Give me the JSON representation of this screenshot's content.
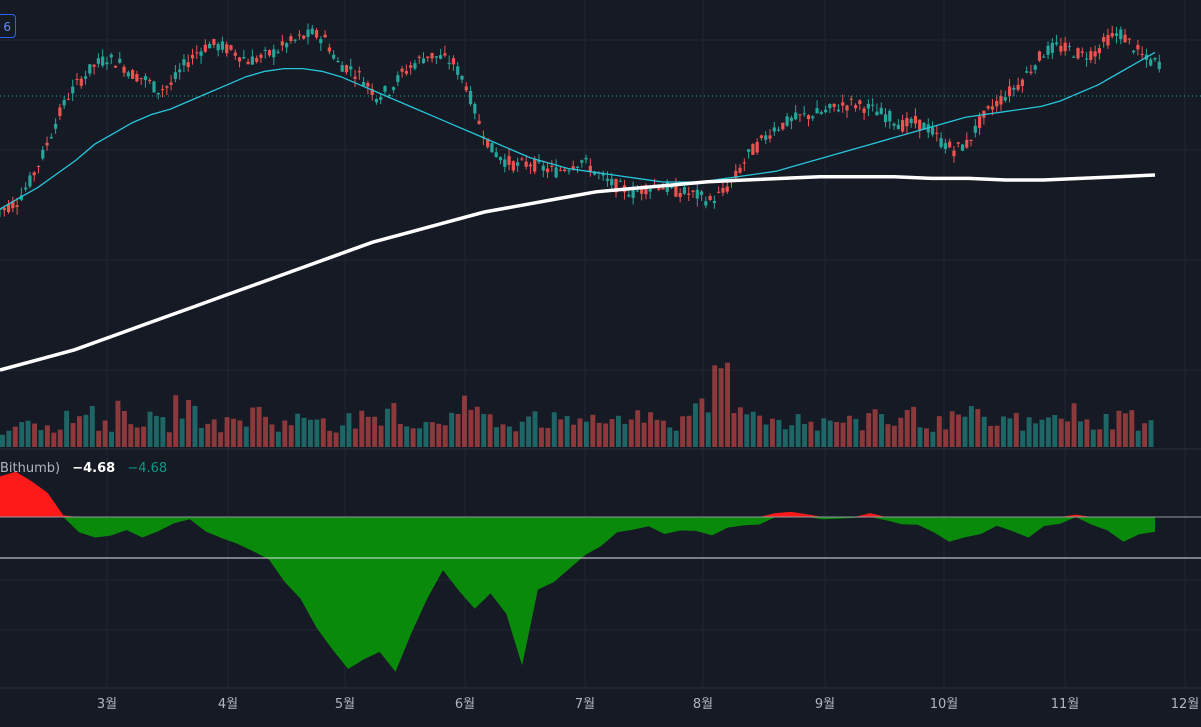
{
  "chart_data": {
    "type": "candlestick",
    "x_ticks": [
      "3월",
      "4월",
      "5월",
      "6월",
      "7월",
      "8월",
      "9월",
      "10월",
      "11월",
      "12월"
    ],
    "price_series": [
      0.3,
      0.33,
      0.4,
      0.5,
      0.62,
      0.72,
      0.78,
      0.83,
      0.86,
      0.84,
      0.8,
      0.78,
      0.74,
      0.76,
      0.83,
      0.88,
      0.91,
      0.9,
      0.88,
      0.85,
      0.86,
      0.88,
      0.91,
      0.93,
      0.95,
      0.93,
      0.84,
      0.82,
      0.78,
      0.72,
      0.74,
      0.8,
      0.84,
      0.87,
      0.86,
      0.84,
      0.76,
      0.62,
      0.52,
      0.48,
      0.46,
      0.47,
      0.45,
      0.44,
      0.46,
      0.48,
      0.44,
      0.4,
      0.38,
      0.36,
      0.38,
      0.39,
      0.37,
      0.36,
      0.35,
      0.33,
      0.36,
      0.42,
      0.5,
      0.55,
      0.6,
      0.62,
      0.64,
      0.65,
      0.66,
      0.68,
      0.69,
      0.68,
      0.66,
      0.64,
      0.61,
      0.62,
      0.6,
      0.55,
      0.52,
      0.54,
      0.62,
      0.68,
      0.72,
      0.76,
      0.82,
      0.88,
      0.9,
      0.89,
      0.87,
      0.88,
      0.93,
      0.95,
      0.9,
      0.85,
      0.84
    ],
    "ma_short": [
      0.3,
      0.34,
      0.38,
      0.43,
      0.48,
      0.54,
      0.58,
      0.62,
      0.65,
      0.67,
      0.7,
      0.73,
      0.76,
      0.79,
      0.81,
      0.82,
      0.82,
      0.81,
      0.79,
      0.76,
      0.73,
      0.7,
      0.67,
      0.64,
      0.61,
      0.58,
      0.55,
      0.52,
      0.49,
      0.47,
      0.45,
      0.44,
      0.43,
      0.42,
      0.41,
      0.4,
      0.4,
      0.4,
      0.41,
      0.42,
      0.43,
      0.44,
      0.46,
      0.48,
      0.5,
      0.52,
      0.54,
      0.56,
      0.58,
      0.6,
      0.62,
      0.64,
      0.65,
      0.66,
      0.67,
      0.68,
      0.7,
      0.73,
      0.76,
      0.8,
      0.84,
      0.88
    ],
    "ma_long": [
      0.0,
      0.03,
      0.06,
      0.1,
      0.14,
      0.18,
      0.22,
      0.26,
      0.3,
      0.34,
      0.38,
      0.41,
      0.44,
      0.47,
      0.49,
      0.51,
      0.53,
      0.54,
      0.55,
      0.56,
      0.565,
      0.57,
      0.575,
      0.575,
      0.575,
      0.57,
      0.57,
      0.565,
      0.565,
      0.57,
      0.575,
      0.58
    ],
    "volume": [
      0.25,
      0.4,
      0.3,
      0.35,
      0.5,
      0.3,
      0.45,
      0.35,
      0.3,
      0.55,
      0.4,
      0.3,
      0.35,
      0.45,
      0.3,
      0.35,
      0.4,
      0.3,
      0.35,
      0.3,
      0.45,
      0.3,
      0.35,
      0.4,
      0.55,
      0.35,
      0.3,
      0.45,
      0.35,
      0.3,
      0.4,
      0.35,
      0.3,
      0.45,
      0.35,
      0.3,
      0.5,
      1.0,
      0.6,
      0.4,
      0.35,
      0.4,
      0.3,
      0.35,
      0.3,
      0.45,
      0.35,
      0.4,
      0.3,
      0.35,
      0.4,
      0.3,
      0.35,
      0.3,
      0.35,
      0.45,
      0.3,
      0.35,
      0.4,
      0.3
    ],
    "oscillator": {
      "name": "Bithumb)",
      "value_current": "−4.68",
      "value_current_2": "−4.68",
      "series": [
        0.9,
        0.95,
        0.85,
        0.6,
        0.0,
        -0.3,
        -0.5,
        -0.4,
        -0.35,
        -0.45,
        -0.3,
        -0.2,
        -0.05,
        -0.3,
        -0.5,
        -0.6,
        -0.8,
        -1.0,
        -1.4,
        -1.8,
        -2.4,
        -3.0,
        -3.4,
        -3.2,
        -3.0,
        -3.4,
        -2.6,
        -1.8,
        -1.2,
        -1.6,
        -2.0,
        -1.7,
        -2.1,
        -3.3,
        -1.6,
        -1.5,
        -1.2,
        -0.9,
        -0.6,
        -0.4,
        -0.3,
        -0.2,
        -0.35,
        -0.25,
        -0.3,
        -0.4,
        -0.3,
        -0.2,
        -0.1,
        0.05,
        0.1,
        0.05,
        0.0,
        -0.1,
        -0.05,
        0.08,
        -0.05,
        -0.1,
        -0.2,
        -0.3,
        -0.5,
        -0.4,
        -0.35,
        -0.2,
        -0.3,
        -0.4,
        -0.25,
        -0.1,
        0.1,
        -0.2,
        -0.35,
        -0.5,
        -0.4,
        -0.3
      ]
    }
  }
}
